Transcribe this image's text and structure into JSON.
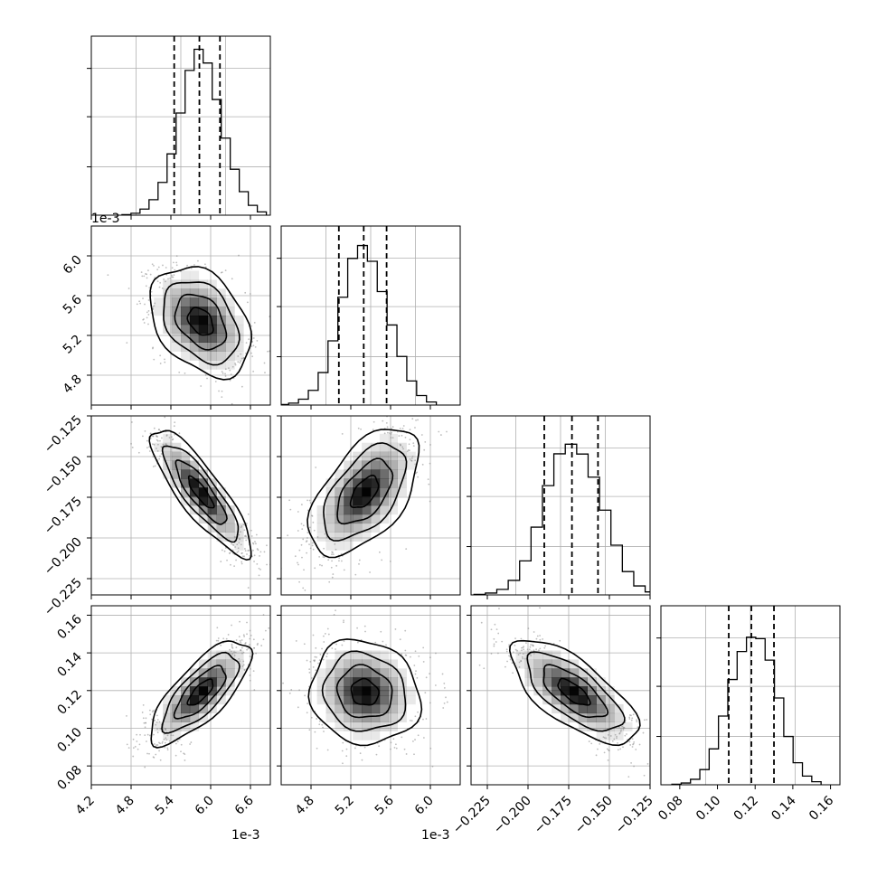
{
  "chart_data": {
    "type": "corner",
    "title": "",
    "grid": true,
    "parameters": [
      {
        "name": "",
        "range": [
          4.2,
          6.9
        ],
        "scale_offset": "1e-3",
        "ticks": [
          "4.2",
          "4.8",
          "5.4",
          "6.0",
          "6.6"
        ],
        "tick_values": [
          4.2,
          4.8,
          5.4,
          6.0,
          6.6
        ],
        "quantiles": [
          5.45,
          5.83,
          6.14
        ],
        "peak": 5.85,
        "width": 0.33,
        "hist_bins": 16
      },
      {
        "name": "",
        "range": [
          4.5,
          6.3
        ],
        "scale_offset": "1e-3",
        "ticks": [
          "4.8",
          "5.2",
          "5.6",
          "6.0"
        ],
        "tick_values": [
          4.8,
          5.2,
          5.6,
          6.0
        ],
        "quantiles": [
          5.08,
          5.33,
          5.56
        ],
        "peak": 5.34,
        "width": 0.24,
        "hist_bins": 16
      },
      {
        "name": "",
        "range": [
          -0.235,
          -0.125
        ],
        "scale_offset": "",
        "ticks": [
          "−0.225",
          "−0.200",
          "−0.175",
          "−0.150",
          "−0.125"
        ],
        "tick_values": [
          -0.225,
          -0.2,
          -0.175,
          -0.15,
          -0.125
        ],
        "quantiles": [
          -0.19,
          -0.173,
          -0.157
        ],
        "peak": -0.172,
        "width": 0.017,
        "hist_bins": 16
      },
      {
        "name": "",
        "range": [
          0.07,
          0.165
        ],
        "scale_offset": "",
        "ticks": [
          "0.08",
          "0.10",
          "0.12",
          "0.14",
          "0.16"
        ],
        "tick_values": [
          0.08,
          0.1,
          0.12,
          0.14,
          0.16
        ],
        "quantiles": [
          0.106,
          0.118,
          0.13
        ],
        "peak": 0.119,
        "width": 0.012,
        "hist_bins": 16
      }
    ],
    "correlations": [
      {
        "pair": [
          0,
          1
        ],
        "rho": -0.35
      },
      {
        "pair": [
          0,
          2
        ],
        "rho": -0.85
      },
      {
        "pair": [
          1,
          2
        ],
        "rho": 0.55
      },
      {
        "pair": [
          0,
          3
        ],
        "rho": 0.75
      },
      {
        "pair": [
          1,
          3
        ],
        "rho": -0.1
      },
      {
        "pair": [
          2,
          3
        ],
        "rho": -0.7
      }
    ],
    "contour_levels_sigma": [
      0.5,
      1.0,
      1.5,
      2.0
    ],
    "colors": {
      "contour": "#000000",
      "density": "#000000",
      "grid": "#b0b0b0",
      "scatter": "#888888"
    }
  }
}
